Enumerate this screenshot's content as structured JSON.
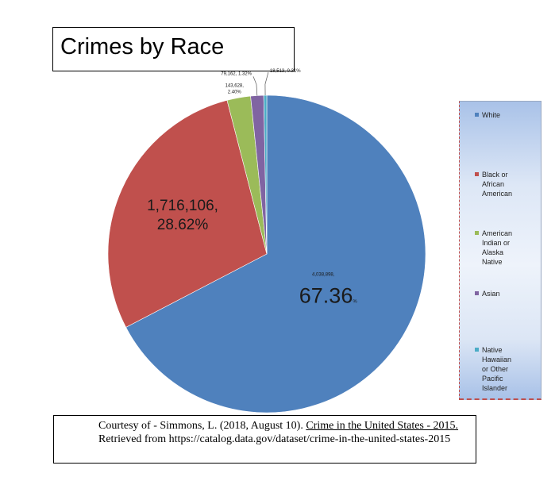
{
  "title": "Crimes by Race",
  "chart_data": {
    "type": "pie",
    "title": "Crimes by Race",
    "legend_position": "right",
    "slices": [
      {
        "name": "White",
        "value": 4038898,
        "percent": 67.36,
        "color": "#4f81bd",
        "label_line1": "4,038,898,",
        "label_line2": "67.36",
        "label_suffix": "%"
      },
      {
        "name": "Black or African American",
        "value": 1716106,
        "percent": 28.62,
        "color": "#c0504d",
        "label_line1": "1,716,106,",
        "label_line2": "28.62%"
      },
      {
        "name": "American Indian or Alaska Native",
        "value": 143628,
        "percent": 2.4,
        "color": "#9bbb59",
        "label_line1": "143,628,",
        "label_line2": "2.40%"
      },
      {
        "name": "Asian",
        "value": 79162,
        "percent": 1.32,
        "color": "#8064a2",
        "label_line1": "79,162, 1.32%"
      },
      {
        "name": "Native Hawaiian or Other Pacific Islander",
        "value": 18513,
        "percent": 0.31,
        "color": "#4bacc6",
        "label_line1": "18,513, 0.31%"
      }
    ]
  },
  "legend": {
    "items": [
      {
        "lines": [
          "White"
        ],
        "color": "#4f81bd"
      },
      {
        "lines": [
          "Black or",
          "African",
          "American"
        ],
        "color": "#c0504d"
      },
      {
        "lines": [
          "American",
          "Indian or",
          "Alaska",
          "Native"
        ],
        "color": "#9bbb59"
      },
      {
        "lines": [
          "Asian"
        ],
        "color": "#8064a2"
      },
      {
        "lines": [
          "Native",
          "Hawaiian",
          "or Other",
          "Pacific",
          "Islander"
        ],
        "color": "#4bacc6"
      }
    ]
  },
  "credit": {
    "prefix": "Courtesy of - Simmons, L. (2018, August 10). ",
    "link_title": "Crime in the United States - 2015.",
    "suffix": " Retrieved from https://catalog.data.gov/dataset/crime-in-the-united-states-2015"
  }
}
